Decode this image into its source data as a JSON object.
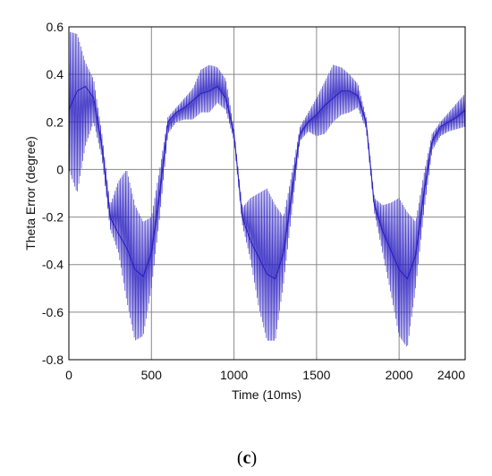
{
  "chart_data": {
    "type": "line",
    "title": "",
    "xlabel": "Time (10ms)",
    "ylabel": "Theta Error (degree)",
    "xlim": [
      0,
      2400
    ],
    "ylim": [
      -0.8,
      0.6
    ],
    "xticks": [
      0,
      500,
      1000,
      1500,
      2000,
      2400
    ],
    "yticks": [
      0.6,
      0.4,
      0.2,
      0,
      -0.2,
      -0.4,
      -0.6,
      -0.8
    ],
    "xtick_labels": [
      "0",
      "500",
      "1000",
      "1500",
      "2000",
      "2400"
    ],
    "ytick_labels": [
      "0.6",
      "0.4",
      "0.2",
      "0",
      "-0.2",
      "-0.4",
      "-0.6",
      "-0.8"
    ],
    "grid": true,
    "series": [
      {
        "color": "#2a1fc0",
        "x": [
          0,
          50,
          100,
          150,
          200,
          250,
          300,
          350,
          400,
          450,
          500,
          550,
          600,
          650,
          700,
          750,
          800,
          850,
          900,
          950,
          1000,
          1050,
          1100,
          1150,
          1200,
          1250,
          1300,
          1350,
          1400,
          1450,
          1500,
          1550,
          1600,
          1650,
          1700,
          1750,
          1800,
          1850,
          1900,
          1950,
          2000,
          2050,
          2100,
          2150,
          2200,
          2250,
          2300,
          2350,
          2400
        ],
        "y": [
          0.25,
          0.33,
          0.35,
          0.3,
          0.1,
          -0.2,
          -0.27,
          -0.33,
          -0.42,
          -0.45,
          -0.35,
          -0.1,
          0.2,
          0.24,
          0.26,
          0.29,
          0.32,
          0.33,
          0.35,
          0.3,
          0.15,
          -0.2,
          -0.3,
          -0.37,
          -0.44,
          -0.46,
          -0.35,
          -0.1,
          0.15,
          0.2,
          0.23,
          0.27,
          0.3,
          0.33,
          0.33,
          0.31,
          0.2,
          -0.15,
          -0.26,
          -0.34,
          -0.42,
          -0.46,
          -0.36,
          -0.1,
          0.12,
          0.18,
          0.2,
          0.22,
          0.25
        ],
        "envelope_upper": [
          0.58,
          0.57,
          0.45,
          0.38,
          0.15,
          -0.15,
          -0.05,
          0.0,
          -0.15,
          -0.22,
          -0.2,
          0.0,
          0.22,
          0.26,
          0.3,
          0.34,
          0.42,
          0.44,
          0.43,
          0.38,
          0.17,
          -0.16,
          -0.12,
          -0.1,
          -0.08,
          -0.15,
          -0.2,
          -0.02,
          0.18,
          0.24,
          0.3,
          0.37,
          0.44,
          0.43,
          0.4,
          0.36,
          0.22,
          -0.12,
          -0.15,
          -0.14,
          -0.12,
          -0.18,
          -0.22,
          -0.02,
          0.15,
          0.2,
          0.24,
          0.28,
          0.32
        ],
        "envelope_lower": [
          0.0,
          -0.1,
          0.1,
          0.2,
          0.05,
          -0.25,
          -0.35,
          -0.55,
          -0.72,
          -0.7,
          -0.5,
          -0.2,
          0.15,
          0.2,
          0.21,
          0.21,
          0.24,
          0.24,
          0.28,
          0.25,
          0.12,
          -0.23,
          -0.38,
          -0.58,
          -0.72,
          -0.72,
          -0.48,
          -0.18,
          0.12,
          0.16,
          0.14,
          0.15,
          0.2,
          0.23,
          0.24,
          0.26,
          0.17,
          -0.18,
          -0.35,
          -0.52,
          -0.7,
          -0.75,
          -0.5,
          -0.18,
          0.08,
          0.14,
          0.16,
          0.17,
          0.18
        ]
      }
    ]
  },
  "caption": {
    "open": "(",
    "letter": "c",
    "close": ")"
  }
}
